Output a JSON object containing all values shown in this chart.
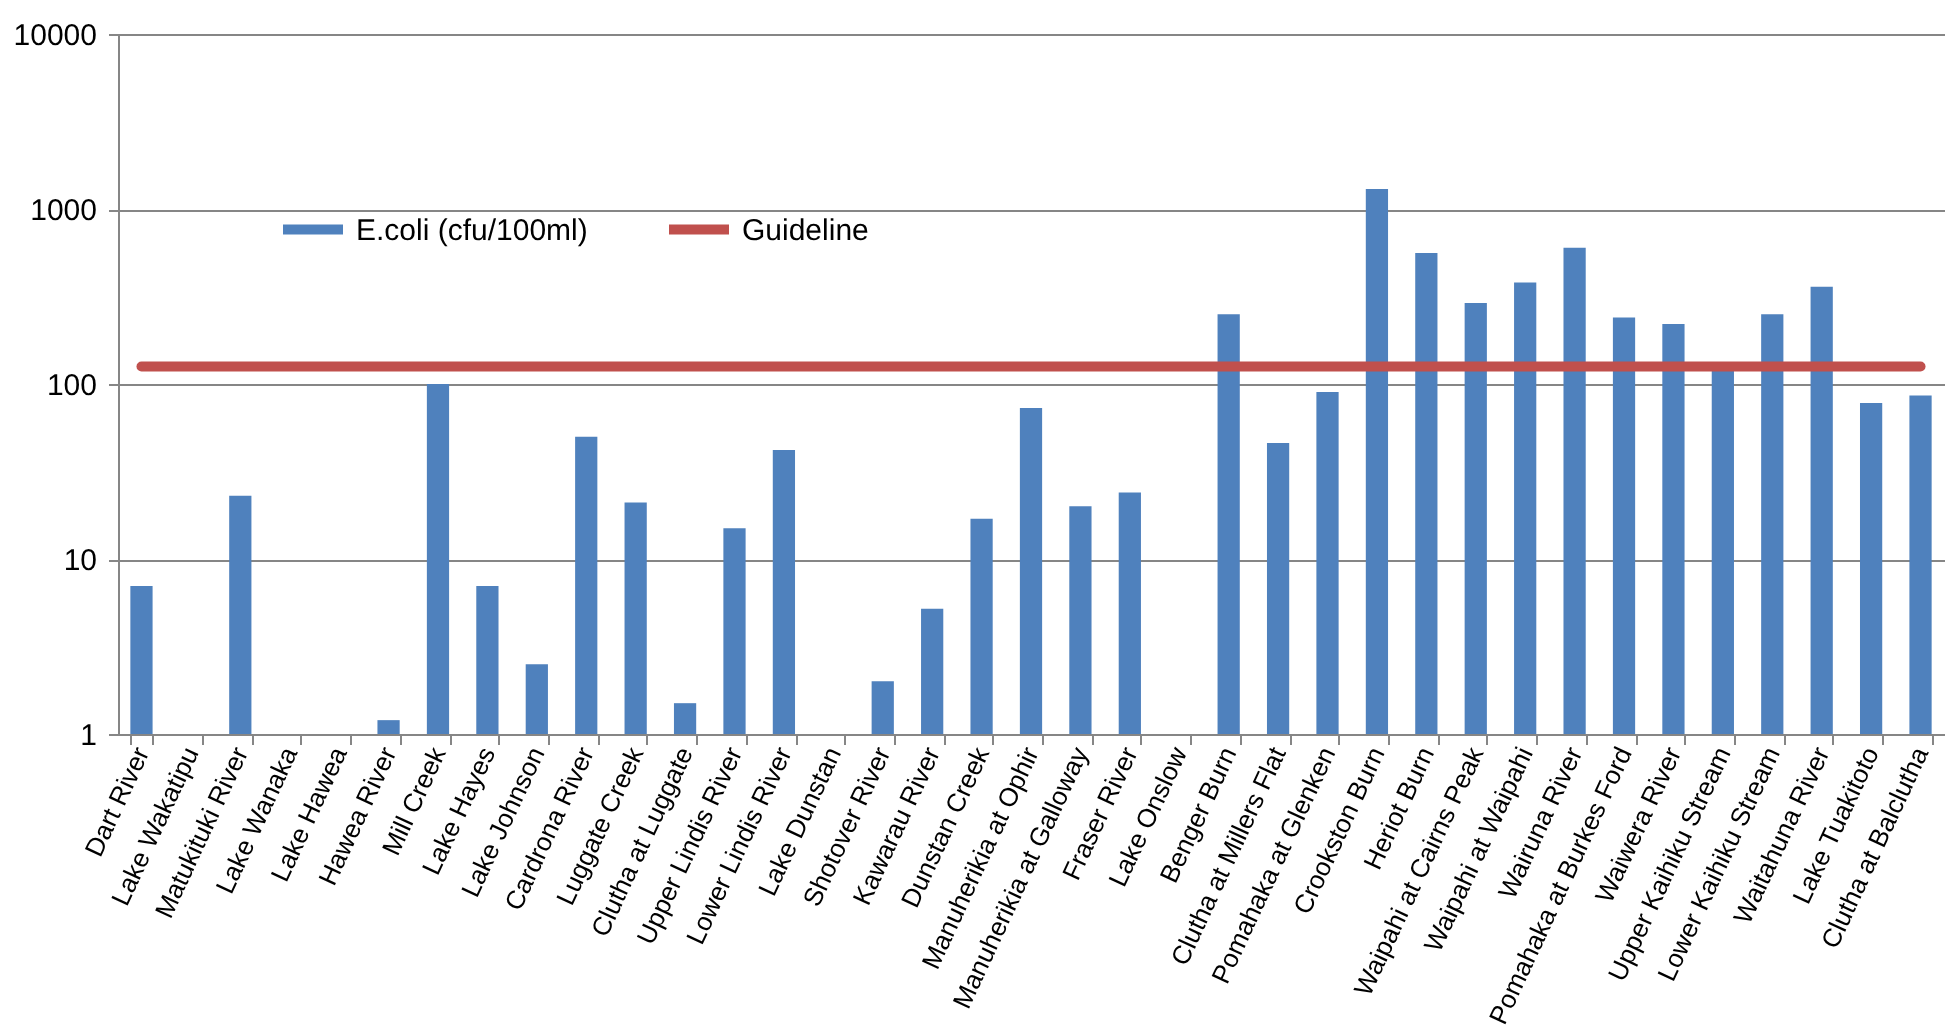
{
  "chart_data": {
    "type": "bar",
    "categories": [
      "Dart River",
      "Lake Wakatipu",
      "Matukituki River",
      "Lake Wanaka",
      "Lake Hawea",
      "Hawea River",
      "Mill Creek",
      "Lake Hayes",
      "Lake Johnson",
      "Cardrona River",
      "Luggate Creek",
      "Clutha at Luggate",
      "Upper Lindis River",
      "Lower Lindis River",
      "Lake Dunstan",
      "Shotover River",
      "Kawarau River",
      "Dunstan Creek",
      "Manuherikia at Ophir",
      "Manuherikia at Galloway",
      "Fraser River",
      "Lake Onslow",
      "Benger Burn",
      "Clutha at Millers Flat",
      "Pomahaka at Glenken",
      "Crookston Burn",
      "Heriot Burn",
      "Waipahi at Cairns Peak",
      "Waipahi at Waipahi",
      "Wairuna River",
      "Pomahaka at Burkes Ford",
      "Waiwera River",
      "Upper Kaihiku Stream",
      "Lower Kaihiku Stream",
      "Waitahuna River",
      "Lake Tuakitoto",
      "Clutha at Balclutha"
    ],
    "series": [
      {
        "name": "E.coli (cfu/100ml)",
        "color": "#4f81bd",
        "values": [
          7,
          1,
          23,
          1,
          1,
          1.2,
          100,
          7,
          2.5,
          50,
          21,
          1.5,
          15,
          42,
          1,
          2,
          5.2,
          17,
          73,
          20,
          24,
          1,
          250,
          46,
          90,
          1300,
          560,
          290,
          380,
          600,
          240,
          220,
          120,
          250,
          360,
          78,
          86
        ]
      },
      {
        "name": "Guideline",
        "type": "line",
        "color": "#c0504d",
        "values": [
          126,
          126,
          126,
          126,
          126,
          126,
          126,
          126,
          126,
          126,
          126,
          126,
          126,
          126,
          126,
          126,
          126,
          126,
          126,
          126,
          126,
          126,
          126,
          126,
          126,
          126,
          126,
          126,
          126,
          126,
          126,
          126,
          126,
          126,
          126,
          126,
          126
        ]
      }
    ],
    "log": true,
    "ylim": [
      1,
      10000
    ],
    "yticks": [
      1,
      10,
      100,
      1000,
      10000
    ],
    "grid": "y",
    "legend": "top left",
    "marker": "none"
  }
}
